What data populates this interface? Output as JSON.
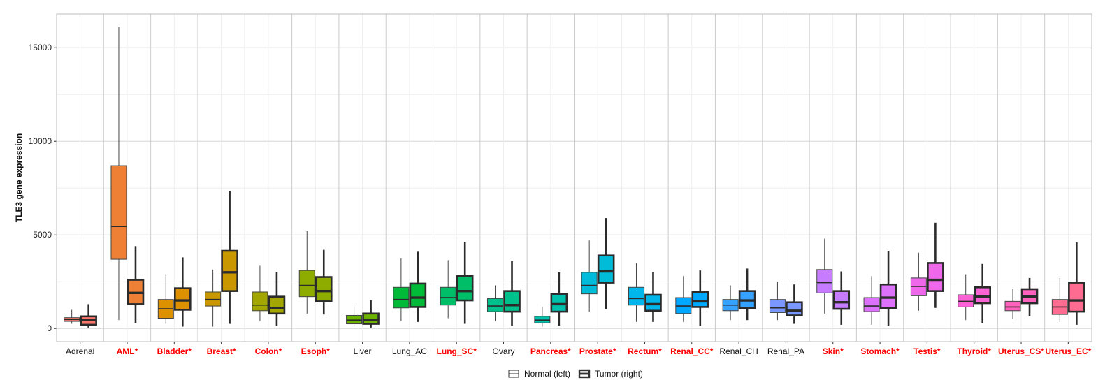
{
  "chart_data": {
    "type": "box",
    "ylabel": "TLE3 gene expression",
    "xlabel": "",
    "ylim": [
      -700,
      16800
    ],
    "yticks": [
      0,
      5000,
      10000,
      15000
    ],
    "ytick_labels": [
      "0",
      "5000",
      "10000",
      "15000"
    ],
    "grid": true,
    "legend": {
      "position": "bottom",
      "entries": [
        {
          "label": "Normal (left)",
          "style": "thin"
        },
        {
          "label": "Tumor (right)",
          "style": "thick"
        }
      ]
    },
    "significant_label_color": "#ff0000",
    "categories": [
      {
        "label": "Adrenal",
        "significant": false,
        "color": "#F8766D",
        "normal": {
          "min": 250,
          "q1": 380,
          "median": 480,
          "q3": 580,
          "max": 1000
        },
        "tumor": {
          "min": 50,
          "q1": 200,
          "median": 470,
          "q3": 650,
          "max": 1300
        }
      },
      {
        "label": "AML*",
        "significant": true,
        "color": "#EE8035",
        "normal": {
          "min": 450,
          "q1": 3700,
          "median": 5450,
          "q3": 8700,
          "max": 16100
        },
        "tumor": {
          "min": 300,
          "q1": 1300,
          "median": 1900,
          "q3": 2600,
          "max": 4400
        }
      },
      {
        "label": "Bladder*",
        "significant": true,
        "color": "#DD9000",
        "normal": {
          "min": 250,
          "q1": 550,
          "median": 1050,
          "q3": 1550,
          "max": 2900
        },
        "tumor": {
          "min": 100,
          "q1": 1000,
          "median": 1500,
          "q3": 2150,
          "max": 3800
        }
      },
      {
        "label": "Breast*",
        "significant": true,
        "color": "#C99800",
        "normal": {
          "min": 100,
          "q1": 1200,
          "median": 1550,
          "q3": 1950,
          "max": 3150
        },
        "tumor": {
          "min": 250,
          "q1": 2000,
          "median": 3000,
          "q3": 4150,
          "max": 7350
        }
      },
      {
        "label": "Colon*",
        "significant": true,
        "color": "#A3A500",
        "normal": {
          "min": 400,
          "q1": 950,
          "median": 1250,
          "q3": 1950,
          "max": 3350
        },
        "tumor": {
          "min": 150,
          "q1": 800,
          "median": 1100,
          "q3": 1700,
          "max": 3000
        }
      },
      {
        "label": "Esoph*",
        "significant": true,
        "color": "#8EAB00",
        "normal": {
          "min": 800,
          "q1": 1700,
          "median": 2300,
          "q3": 3100,
          "max": 5200
        },
        "tumor": {
          "min": 750,
          "q1": 1450,
          "median": 2000,
          "q3": 2750,
          "max": 4200
        }
      },
      {
        "label": "Liver",
        "significant": false,
        "color": "#6BB100",
        "normal": {
          "min": 100,
          "q1": 250,
          "median": 450,
          "q3": 700,
          "max": 1250
        },
        "tumor": {
          "min": 50,
          "q1": 250,
          "median": 450,
          "q3": 800,
          "max": 1500
        }
      },
      {
        "label": "Lung_AC",
        "significant": false,
        "color": "#00BA38",
        "normal": {
          "min": 400,
          "q1": 1100,
          "median": 1550,
          "q3": 2200,
          "max": 3750
        },
        "tumor": {
          "min": 350,
          "q1": 1150,
          "median": 1650,
          "q3": 2400,
          "max": 4100
        }
      },
      {
        "label": "Lung_SC*",
        "significant": true,
        "color": "#00BE67",
        "normal": {
          "min": 550,
          "q1": 1250,
          "median": 1650,
          "q3": 2200,
          "max": 3650
        },
        "tumor": {
          "min": 250,
          "q1": 1500,
          "median": 2000,
          "q3": 2800,
          "max": 4600
        }
      },
      {
        "label": "Ovary",
        "significant": false,
        "color": "#00C08B",
        "normal": {
          "min": 400,
          "q1": 900,
          "median": 1200,
          "q3": 1600,
          "max": 2300
        },
        "tumor": {
          "min": 150,
          "q1": 900,
          "median": 1250,
          "q3": 2000,
          "max": 3600
        }
      },
      {
        "label": "Pancreas*",
        "significant": true,
        "color": "#00C1AB",
        "normal": {
          "min": 100,
          "q1": 300,
          "median": 450,
          "q3": 650,
          "max": 1150
        },
        "tumor": {
          "min": 150,
          "q1": 900,
          "median": 1300,
          "q3": 1850,
          "max": 3000
        }
      },
      {
        "label": "Prostate*",
        "significant": true,
        "color": "#00BCD8",
        "normal": {
          "min": 900,
          "q1": 1850,
          "median": 2300,
          "q3": 3000,
          "max": 4700
        },
        "tumor": {
          "min": 1050,
          "q1": 2450,
          "median": 3050,
          "q3": 3900,
          "max": 5900
        }
      },
      {
        "label": "Rectum*",
        "significant": true,
        "color": "#00B6EB",
        "normal": {
          "min": 350,
          "q1": 1250,
          "median": 1600,
          "q3": 2200,
          "max": 3500
        },
        "tumor": {
          "min": 350,
          "q1": 950,
          "median": 1300,
          "q3": 1800,
          "max": 3000
        }
      },
      {
        "label": "Renal_CC*",
        "significant": true,
        "color": "#00A9FF",
        "normal": {
          "min": 350,
          "q1": 800,
          "median": 1200,
          "q3": 1650,
          "max": 2800
        },
        "tumor": {
          "min": 150,
          "q1": 1150,
          "median": 1450,
          "q3": 1950,
          "max": 3100
        }
      },
      {
        "label": "Renal_CH",
        "significant": false,
        "color": "#35A2FF",
        "normal": {
          "min": 450,
          "q1": 950,
          "median": 1250,
          "q3": 1550,
          "max": 2300
        },
        "tumor": {
          "min": 450,
          "q1": 1100,
          "median": 1500,
          "q3": 2000,
          "max": 3200
        }
      },
      {
        "label": "Renal_PA",
        "significant": false,
        "color": "#7997FF",
        "normal": {
          "min": 450,
          "q1": 850,
          "median": 1100,
          "q3": 1550,
          "max": 2500
        },
        "tumor": {
          "min": 250,
          "q1": 700,
          "median": 950,
          "q3": 1400,
          "max": 2350
        }
      },
      {
        "label": "Skin*",
        "significant": true,
        "color": "#C77CFF",
        "normal": {
          "min": 800,
          "q1": 1900,
          "median": 2450,
          "q3": 3150,
          "max": 4800
        },
        "tumor": {
          "min": 200,
          "q1": 1050,
          "median": 1400,
          "q3": 2000,
          "max": 3050
        }
      },
      {
        "label": "Stomach*",
        "significant": true,
        "color": "#DC71FA",
        "normal": {
          "min": 200,
          "q1": 900,
          "median": 1200,
          "q3": 1650,
          "max": 2800
        },
        "tumor": {
          "min": 150,
          "q1": 1100,
          "median": 1650,
          "q3": 2350,
          "max": 4150
        }
      },
      {
        "label": "Testis*",
        "significant": true,
        "color": "#EF67EB",
        "normal": {
          "min": 950,
          "q1": 1750,
          "median": 2250,
          "q3": 2700,
          "max": 4050
        },
        "tumor": {
          "min": 1100,
          "q1": 2000,
          "median": 2600,
          "q3": 3500,
          "max": 5650
        }
      },
      {
        "label": "Thyroid*",
        "significant": true,
        "color": "#FA62D5",
        "normal": {
          "min": 450,
          "q1": 1150,
          "median": 1450,
          "q3": 1800,
          "max": 2900
        },
        "tumor": {
          "min": 300,
          "q1": 1350,
          "median": 1700,
          "q3": 2200,
          "max": 3450
        }
      },
      {
        "label": "Uterus_CS*",
        "significant": true,
        "color": "#FF62BC",
        "normal": {
          "min": 500,
          "q1": 950,
          "median": 1150,
          "q3": 1450,
          "max": 2100
        },
        "tumor": {
          "min": 650,
          "q1": 1350,
          "median": 1700,
          "q3": 2100,
          "max": 2700
        }
      },
      {
        "label": "Uterus_EC*",
        "significant": true,
        "color": "#FF6C91",
        "normal": {
          "min": 350,
          "q1": 750,
          "median": 1150,
          "q3": 1550,
          "max": 2700
        },
        "tumor": {
          "min": 200,
          "q1": 900,
          "median": 1500,
          "q3": 2450,
          "max": 4600
        }
      }
    ]
  }
}
